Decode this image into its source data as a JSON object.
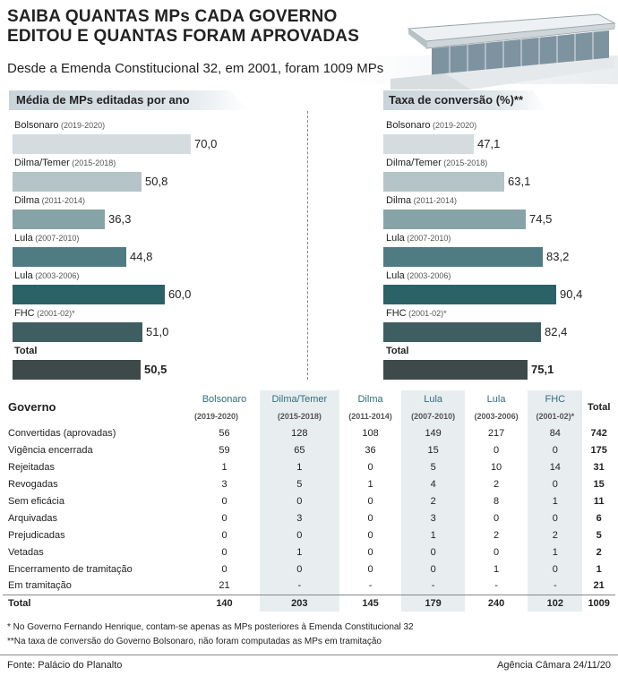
{
  "header": {
    "title_line1": "SAIBA QUANTAS MPs CADA GOVERNO",
    "title_line2": "EDITOU E QUANTAS FORAM APROVADAS",
    "subtitle": "Desde a Emenda Constitucional 32, em 2001, foram 1009 MPs"
  },
  "colors": {
    "bolsonaro": "#d5dcdf",
    "dilma_temer": "#b4c4c8",
    "dilma": "#86a4a8",
    "lula1": "#4f7c82",
    "lula2": "#2a6268",
    "fhc": "#3e5e62",
    "total": "#3e4a4a"
  },
  "chart_data": [
    {
      "type": "bar",
      "title": "Média de MPs editadas por ano",
      "categories": [
        {
          "name": "Bolsonaro",
          "years": "(2019-2020)"
        },
        {
          "name": "Dilma/Temer",
          "years": "(2015-2018)"
        },
        {
          "name": "Dilma",
          "years": "(2011-2014)"
        },
        {
          "name": "Lula",
          "years": "(2007-2010)"
        },
        {
          "name": "Lula",
          "years": "(2003-2006)"
        },
        {
          "name": "FHC",
          "years": "(2001-02)*"
        },
        {
          "name": "Total",
          "years": ""
        }
      ],
      "values": [
        70.0,
        50.8,
        36.3,
        44.8,
        60.0,
        51.0,
        50.5
      ],
      "value_labels": [
        "70,0",
        "50,8",
        "36,3",
        "44,8",
        "60,0",
        "51,0",
        "50,5"
      ]
    },
    {
      "type": "bar",
      "title": "Taxa de conversão (%)**",
      "categories": [
        {
          "name": "Bolsonaro",
          "years": "(2019-2020)"
        },
        {
          "name": "Dilma/Temer",
          "years": "(2015-2018)"
        },
        {
          "name": "Dilma",
          "years": "(2011-2014)"
        },
        {
          "name": "Lula",
          "years": "(2007-2010)"
        },
        {
          "name": "Lula",
          "years": "(2003-2006)"
        },
        {
          "name": "FHC",
          "years": "(2001-02)*"
        },
        {
          "name": "Total",
          "years": ""
        }
      ],
      "values": [
        47.1,
        63.1,
        74.5,
        83.2,
        90.4,
        82.4,
        75.1
      ],
      "value_labels": [
        "47,1",
        "63,1",
        "74,5",
        "83,2",
        "90,4",
        "82,4",
        "75,1"
      ]
    }
  ],
  "table": {
    "corner": "Governo",
    "columns": [
      {
        "name": "Bolsonaro",
        "years": "(2019-2020)"
      },
      {
        "name": "Dilma/Temer",
        "years": "(2015-2018)"
      },
      {
        "name": "Dilma",
        "years": "(2011-2014)"
      },
      {
        "name": "Lula",
        "years": "(2007-2010)"
      },
      {
        "name": "Lula",
        "years": "(2003-2006)"
      },
      {
        "name": "FHC",
        "years": "(2001-02)*"
      },
      {
        "name": "Total",
        "years": ""
      }
    ],
    "rows": [
      {
        "label": "Convertidas (aprovadas)",
        "values": [
          "56",
          "128",
          "108",
          "149",
          "217",
          "84",
          "742"
        ]
      },
      {
        "label": "Vigência encerrada",
        "values": [
          "59",
          "65",
          "36",
          "15",
          "0",
          "0",
          "175"
        ]
      },
      {
        "label": "Rejeitadas",
        "values": [
          "1",
          "1",
          "0",
          "5",
          "10",
          "14",
          "31"
        ]
      },
      {
        "label": "Revogadas",
        "values": [
          "3",
          "5",
          "1",
          "4",
          "2",
          "0",
          "15"
        ]
      },
      {
        "label": "Sem eficácia",
        "values": [
          "0",
          "0",
          "0",
          "2",
          "8",
          "1",
          "11"
        ]
      },
      {
        "label": "Arquivadas",
        "values": [
          "0",
          "3",
          "0",
          "3",
          "0",
          "0",
          "6"
        ]
      },
      {
        "label": "Prejudicadas",
        "values": [
          "0",
          "0",
          "0",
          "1",
          "2",
          "2",
          "5"
        ]
      },
      {
        "label": "Vetadas",
        "values": [
          "0",
          "1",
          "0",
          "0",
          "0",
          "1",
          "2"
        ]
      },
      {
        "label": "Encerramento de tramitação",
        "values": [
          "0",
          "0",
          "0",
          "0",
          "1",
          "0",
          "1"
        ]
      },
      {
        "label": "Em tramitação",
        "values": [
          "21",
          "-",
          "-",
          "-",
          "-",
          "-",
          "21"
        ]
      }
    ],
    "total_row": {
      "label": "Total",
      "values": [
        "140",
        "203",
        "145",
        "179",
        "240",
        "102",
        "1009"
      ]
    }
  },
  "footnotes": [
    "* No Governo Fernando Henrique, contam-se apenas as MPs posteriores à Emenda Constitucional 32",
    "**Na taxa de conversão do Governo Bolsonaro, não foram computadas as MPs em tramitação"
  ],
  "footer": {
    "source": "Fonte: Palácio do Planalto",
    "agency": "Agência Câmara 24/11/20"
  }
}
